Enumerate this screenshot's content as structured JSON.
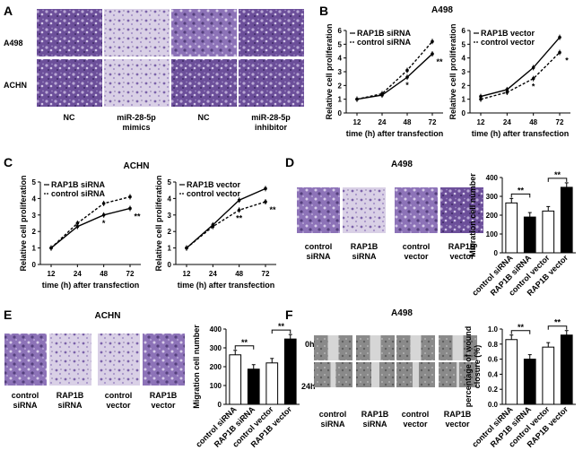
{
  "panels": {
    "A": {
      "letter": "A",
      "row_labels": [
        "A498",
        "ACHN"
      ],
      "col_labels": [
        "NC",
        "miR-28-5p\nmimics",
        "NC",
        "miR-28-5p\ninhibitor"
      ]
    },
    "B": {
      "letter": "B",
      "title": "A498"
    },
    "C": {
      "letter": "C",
      "title": "ACHN"
    },
    "D": {
      "letter": "D",
      "title": "A498",
      "image_labels": [
        "control\nsiRNA",
        "RAP1B\nsiRNA",
        "control\nvector",
        "RAP1B\nvector"
      ]
    },
    "E": {
      "letter": "E",
      "title": "ACHN",
      "image_labels": [
        "control\nsiRNA",
        "RAP1B\nsiRNA",
        "control\nvector",
        "RAP1B\nvector"
      ]
    },
    "F": {
      "letter": "F",
      "title": "A498",
      "row_labels": [
        "0h",
        "24h"
      ],
      "image_labels": [
        "control\nsiRNA",
        "RAP1B\nsiRNA",
        "control\nvector",
        "RAP1B\nvector"
      ]
    }
  },
  "chart_data": [
    {
      "id": "B-left",
      "type": "line",
      "x": [
        12,
        24,
        48,
        72
      ],
      "xlabel": "time (h) after transfection",
      "ylabel": "Relative cell proliferation",
      "ylim": [
        0,
        6
      ],
      "yticks": [
        0,
        1,
        2,
        3,
        4,
        5,
        6
      ],
      "series": [
        {
          "name": "RAP1B siRNA",
          "style": "solid",
          "values": [
            1.0,
            1.3,
            2.6,
            4.3
          ]
        },
        {
          "name": "control siRNA",
          "style": "dashed",
          "values": [
            1.0,
            1.4,
            3.1,
            5.2
          ]
        }
      ],
      "annotations": [
        "*",
        "**"
      ],
      "legend": "top-left"
    },
    {
      "id": "B-right",
      "type": "line",
      "x": [
        12,
        24,
        48,
        72
      ],
      "xlabel": "time (h) after transfection",
      "ylabel": "Relative cell proliferation",
      "ylim": [
        0,
        6
      ],
      "yticks": [
        0,
        1,
        2,
        3,
        4,
        5,
        6
      ],
      "series": [
        {
          "name": "RAP1B vector",
          "style": "solid",
          "values": [
            1.2,
            1.7,
            3.3,
            5.5
          ]
        },
        {
          "name": "control vector",
          "style": "dashed",
          "values": [
            1.0,
            1.5,
            2.5,
            4.4
          ]
        }
      ],
      "annotations": [
        "*",
        "*"
      ],
      "legend": "top-left"
    },
    {
      "id": "C-left",
      "type": "line",
      "x": [
        12,
        24,
        48,
        72
      ],
      "xlabel": "time (h) after transfection",
      "ylabel": "Relative cell proliferation",
      "ylim": [
        0,
        5
      ],
      "yticks": [
        0,
        1,
        2,
        3,
        4,
        5
      ],
      "series": [
        {
          "name": "RAP1B siRNA",
          "style": "solid",
          "values": [
            1.0,
            2.3,
            3.0,
            3.4
          ]
        },
        {
          "name": "control siRNA",
          "style": "dashed",
          "values": [
            1.0,
            2.5,
            3.7,
            4.1
          ]
        }
      ],
      "annotations": [
        "*",
        "**"
      ],
      "legend": "top-left"
    },
    {
      "id": "C-right",
      "type": "line",
      "x": [
        12,
        24,
        48,
        72
      ],
      "xlabel": "time (h) after transfection",
      "ylabel": "Relative cell proliferation",
      "ylim": [
        0,
        5
      ],
      "yticks": [
        0,
        1,
        2,
        3,
        4,
        5
      ],
      "series": [
        {
          "name": "RAP1B vector",
          "style": "solid",
          "values": [
            1.0,
            2.4,
            3.9,
            4.6
          ]
        },
        {
          "name": "control vector",
          "style": "dashed",
          "values": [
            1.0,
            2.3,
            3.3,
            3.8
          ]
        }
      ],
      "annotations": [
        "**",
        "**"
      ],
      "legend": "top-left"
    },
    {
      "id": "D-bar",
      "type": "bar",
      "categories": [
        "control siRNA",
        "RAP1B siRNA",
        "control vector",
        "RAP1B vector"
      ],
      "values": [
        265,
        190,
        222,
        348
      ],
      "fills": [
        "white",
        "black",
        "white",
        "black"
      ],
      "ylabel": "Migration cell number",
      "ylim": [
        0,
        400
      ],
      "yticks": [
        0,
        100,
        200,
        300,
        400
      ],
      "annotations": [
        "**",
        "**"
      ]
    },
    {
      "id": "E-bar",
      "type": "bar",
      "categories": [
        "control siRNA",
        "RAP1B siRNA",
        "control vector",
        "RAP1B vector"
      ],
      "values": [
        263,
        187,
        220,
        347
      ],
      "fills": [
        "white",
        "black",
        "white",
        "black"
      ],
      "ylabel": "Migration cell number",
      "ylim": [
        0,
        400
      ],
      "yticks": [
        0,
        100,
        200,
        300,
        400
      ],
      "annotations": [
        "**",
        "**"
      ]
    },
    {
      "id": "F-bar",
      "type": "bar",
      "categories": [
        "control siRNA",
        "RAP1B siRNA",
        "control vector",
        "RAP1B vector"
      ],
      "values": [
        0.86,
        0.6,
        0.76,
        0.92
      ],
      "fills": [
        "white",
        "black",
        "white",
        "black"
      ],
      "ylabel": "percentage of wound\nclosure (%)",
      "ylim": [
        0,
        1.0
      ],
      "yticks": [
        "0.0",
        "0.2",
        "0.4",
        "0.6",
        "0.8",
        "1.0"
      ],
      "annotations": [
        "**",
        "**"
      ]
    }
  ]
}
